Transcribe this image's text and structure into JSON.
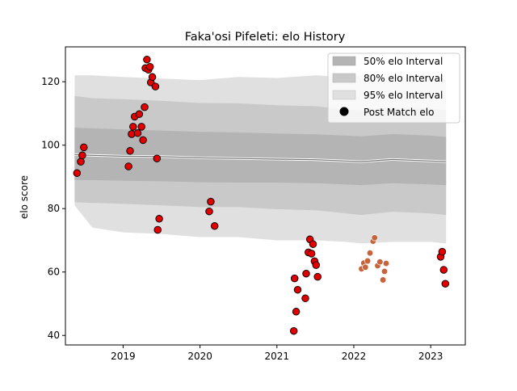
{
  "chart_data": {
    "type": "scatter",
    "title": "Faka'osi Pifeleti: elo History",
    "xlabel": "",
    "ylabel": "elo score",
    "xlim": [
      2018.25,
      2023.45
    ],
    "ylim": [
      37,
      131
    ],
    "x_ticks": [
      {
        "value": 2019,
        "label": "2019"
      },
      {
        "value": 2020,
        "label": "2020"
      },
      {
        "value": 2021,
        "label": "2021"
      },
      {
        "value": 2022,
        "label": "2022"
      },
      {
        "value": 2023,
        "label": "2023"
      }
    ],
    "y_ticks": [
      {
        "value": 40,
        "label": "40"
      },
      {
        "value": 60,
        "label": "60"
      },
      {
        "value": 80,
        "label": "80"
      },
      {
        "value": 100,
        "label": "100"
      },
      {
        "value": 120,
        "label": "120"
      }
    ],
    "grid": false,
    "legend_position": "top-right",
    "legend": [
      {
        "label": "50% elo Interval",
        "kind": "patch",
        "color": "#b4b4b4"
      },
      {
        "label": "80% elo Interval",
        "kind": "patch",
        "color": "#c9c9c9"
      },
      {
        "label": "95% elo Interval",
        "kind": "patch",
        "color": "#e0e0e0"
      },
      {
        "label": "Post Match elo",
        "kind": "marker",
        "color": "#000000"
      }
    ],
    "bands": {
      "x": [
        2018.37,
        2018.6,
        2019.0,
        2019.5,
        2020.0,
        2020.5,
        2021.0,
        2021.5,
        2021.9,
        2022.1,
        2022.5,
        2023.0,
        2023.2
      ],
      "median": [
        97.0,
        96.8,
        96.5,
        96.4,
        96.0,
        95.8,
        95.6,
        95.4,
        95.0,
        94.8,
        95.5,
        95.0,
        94.8
      ],
      "p50": {
        "low": [
          89.0,
          89.0,
          88.8,
          88.6,
          88.3,
          88.2,
          88.2,
          88.0,
          87.6,
          87.4,
          88.0,
          87.6,
          87.4
        ],
        "high": [
          105.5,
          105.3,
          105.0,
          104.6,
          104.2,
          104.0,
          103.7,
          103.4,
          103.0,
          102.8,
          103.5,
          103.0,
          102.6
        ]
      },
      "p80": {
        "low": [
          82.0,
          81.8,
          81.5,
          81.0,
          80.5,
          80.5,
          79.8,
          79.5,
          78.5,
          78.0,
          79.0,
          78.5,
          78.0
        ],
        "high": [
          115.5,
          114.8,
          114.5,
          114.0,
          113.3,
          113.2,
          112.6,
          112.3,
          111.2,
          111.0,
          112.0,
          111.5,
          111.0
        ]
      },
      "p95": {
        "low": [
          81.0,
          74.0,
          72.5,
          72.0,
          71.0,
          71.0,
          70.0,
          70.0,
          69.5,
          69.0,
          69.5,
          69.5,
          69.0
        ],
        "high": [
          122.0,
          122.0,
          121.5,
          121.0,
          120.5,
          121.5,
          121.2,
          122.0,
          121.5,
          122.0,
          121.5,
          121.5,
          121.0
        ]
      }
    },
    "series": [
      {
        "name": "Post Match elo",
        "color": "#e00000",
        "points": [
          {
            "x": 2018.4,
            "y": 91.2
          },
          {
            "x": 2018.45,
            "y": 94.8
          },
          {
            "x": 2018.47,
            "y": 96.8
          },
          {
            "x": 2018.49,
            "y": 99.3
          },
          {
            "x": 2019.07,
            "y": 93.3
          },
          {
            "x": 2019.09,
            "y": 98.2
          },
          {
            "x": 2019.11,
            "y": 103.5
          },
          {
            "x": 2019.13,
            "y": 105.8
          },
          {
            "x": 2019.15,
            "y": 109.0
          },
          {
            "x": 2019.19,
            "y": 103.8
          },
          {
            "x": 2019.21,
            "y": 109.8
          },
          {
            "x": 2019.24,
            "y": 105.8
          },
          {
            "x": 2019.26,
            "y": 101.6
          },
          {
            "x": 2019.28,
            "y": 112.0
          },
          {
            "x": 2019.29,
            "y": 124.3
          },
          {
            "x": 2019.31,
            "y": 127.0
          },
          {
            "x": 2019.33,
            "y": 123.8
          },
          {
            "x": 2019.35,
            "y": 124.7
          },
          {
            "x": 2019.36,
            "y": 119.8
          },
          {
            "x": 2019.38,
            "y": 121.5
          },
          {
            "x": 2019.42,
            "y": 118.5
          },
          {
            "x": 2019.44,
            "y": 95.8
          },
          {
            "x": 2019.45,
            "y": 73.3
          },
          {
            "x": 2019.47,
            "y": 76.8
          },
          {
            "x": 2020.12,
            "y": 79.1
          },
          {
            "x": 2020.14,
            "y": 82.2
          },
          {
            "x": 2020.19,
            "y": 74.5
          },
          {
            "x": 2021.22,
            "y": 41.4
          },
          {
            "x": 2021.23,
            "y": 58.0
          },
          {
            "x": 2021.25,
            "y": 47.5
          },
          {
            "x": 2021.27,
            "y": 54.4
          },
          {
            "x": 2021.37,
            "y": 51.7
          },
          {
            "x": 2021.38,
            "y": 59.5
          },
          {
            "x": 2021.41,
            "y": 66.2
          },
          {
            "x": 2021.43,
            "y": 70.3
          },
          {
            "x": 2021.45,
            "y": 65.8
          },
          {
            "x": 2021.47,
            "y": 68.8
          },
          {
            "x": 2021.49,
            "y": 63.4
          },
          {
            "x": 2021.51,
            "y": 62.2
          },
          {
            "x": 2021.53,
            "y": 58.5
          },
          {
            "x": 2023.13,
            "y": 64.8
          },
          {
            "x": 2023.15,
            "y": 66.4
          },
          {
            "x": 2023.17,
            "y": 60.7
          },
          {
            "x": 2023.19,
            "y": 56.3
          }
        ]
      },
      {
        "color": "#c8643c",
        "points": [
          {
            "x": 2022.1,
            "y": 61.0
          },
          {
            "x": 2022.13,
            "y": 62.8
          },
          {
            "x": 2022.15,
            "y": 61.5
          },
          {
            "x": 2022.18,
            "y": 63.5
          },
          {
            "x": 2022.21,
            "y": 66.0
          },
          {
            "x": 2022.25,
            "y": 69.7
          },
          {
            "x": 2022.27,
            "y": 70.8
          },
          {
            "x": 2022.31,
            "y": 62.0
          },
          {
            "x": 2022.34,
            "y": 63.2
          },
          {
            "x": 2022.38,
            "y": 57.5
          },
          {
            "x": 2022.4,
            "y": 60.2
          },
          {
            "x": 2022.42,
            "y": 62.7
          }
        ]
      }
    ]
  }
}
